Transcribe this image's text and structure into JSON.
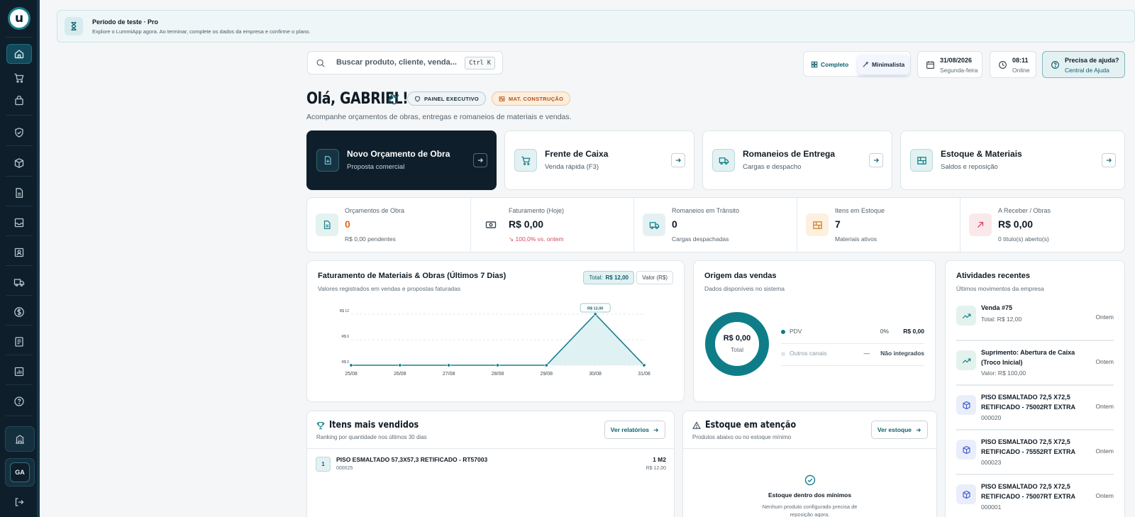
{
  "colors": {
    "primary": "#0e5f6e",
    "accent": "#17808d",
    "dark": "#0e1f2b",
    "warning": "#e06a1b",
    "danger": "#d94b5a"
  },
  "sidebar": {
    "logo": "u",
    "items": [
      {
        "icon": "home-icon",
        "active": true
      },
      {
        "icon": "cart-icon"
      },
      {
        "icon": "bag-icon"
      },
      {
        "icon": "shield-icon"
      },
      {
        "icon": "box-icon"
      },
      {
        "icon": "document-icon"
      },
      {
        "icon": "inbox-icon"
      },
      {
        "icon": "contacts-icon"
      },
      {
        "icon": "truck-icon"
      },
      {
        "icon": "dollar-icon"
      },
      {
        "icon": "receipt-icon"
      },
      {
        "icon": "chart-icon"
      },
      {
        "icon": "help-icon"
      }
    ],
    "company_icon": "building-icon",
    "avatar_initials": "GA",
    "logout_icon": "logout-icon"
  },
  "trial": {
    "title": "Período de teste · Pro",
    "text": "Explore o LummiApp agora. Ao terminar, complete os dados da empresa e confirme o plano."
  },
  "search": {
    "placeholder": "Buscar produto, cliente, venda...",
    "shortcut": "Ctrl K"
  },
  "view_mode": {
    "full": "Completo",
    "minimal": "Minimalista"
  },
  "date": {
    "value": "31/08/2026",
    "weekday": "Segunda-feira"
  },
  "clock": {
    "time": "08:11",
    "status": "Online"
  },
  "help": {
    "title": "Precisa de ajuda?",
    "subtitle": "Central de Ajuda"
  },
  "greeting": {
    "title": "Olá, GABRIEL!",
    "tag_exec": "PAINEL EXECUTIVO",
    "tag_mat": "MAT. CONSTRUÇÃO",
    "subtitle": "Acompanhe orçamentos de obras, entregas e romaneios de materiais e vendas."
  },
  "actions": [
    {
      "title": "Novo Orçamento de Obra",
      "subtitle": "Proposta comercial"
    },
    {
      "title": "Frente de Caixa",
      "subtitle": "Venda rápida (F3)"
    },
    {
      "title": "Romaneios de Entrega",
      "subtitle": "Cargas e despacho"
    },
    {
      "title": "Estoque & Materiais",
      "subtitle": "Saldos e reposição"
    }
  ],
  "kpis": [
    {
      "label": "Orçamentos de Obra",
      "value": "0",
      "sub": "R$ 0,00 pendentes"
    },
    {
      "label": "Faturamento (Hoje)",
      "value": "R$ 0,00",
      "sub": "↘ 100,0% vs. ontem"
    },
    {
      "label": "Romaneios em Trânsito",
      "value": "0",
      "sub": "Cargas despachadas"
    },
    {
      "label": "Itens em Estoque",
      "value": "7",
      "sub": "Materiais ativos"
    },
    {
      "label": "A Receber / Obras",
      "value": "R$ 0,00",
      "sub": "0 título(s) aberto(s)"
    }
  ],
  "revenue": {
    "title": "Faturamento de Materiais & Obras (Últimos 7 Dias)",
    "subtitle": "Valores registrados em vendas e propostas faturadas",
    "total_label": "Total:",
    "total_value": "R$ 12,00",
    "value_toggle": "Valor (R$)"
  },
  "chart_data": {
    "type": "area",
    "x": [
      "25/08",
      "26/08",
      "27/08",
      "28/08",
      "29/08",
      "30/08",
      "31/08"
    ],
    "series": [
      {
        "values": [
          0,
          0,
          0,
          0,
          0,
          12,
          0
        ]
      }
    ],
    "y_ticks": [
      "R$ 12",
      "R$ 6",
      "R$ 0"
    ],
    "ylim": [
      0,
      12
    ],
    "peak_label": "R$ 12,00",
    "grid": true
  },
  "origin": {
    "title": "Origem das vendas",
    "subtitle": "Dados disponíveis no sistema",
    "center_value": "R$ 0,00",
    "center_label": "Total",
    "rows": [
      {
        "name": "PDV",
        "pct": "0%",
        "amount": "R$ 0,00"
      },
      {
        "name": "Outros canais",
        "pct": "—",
        "amount": "Não integrados"
      }
    ]
  },
  "activities": {
    "title": "Atividades recentes",
    "subtitle": "Últimos movimentos da empresa",
    "items": [
      {
        "icon": "trend-up-icon",
        "title": "Venda #75",
        "sub": "Total: R$ 12,00",
        "when": "Ontem"
      },
      {
        "icon": "trend-up-icon",
        "title": "Suprimento: Abertura de Caixa (Troco Inicial)",
        "sub": "Valor: R$ 100,00",
        "when": "Ontem"
      },
      {
        "icon": "package-icon",
        "title": "PISO ESMALTADO 72,5 X72,5 RETIFICADO - 75002RT EXTRA",
        "sub": "000020",
        "when": "Ontem"
      },
      {
        "icon": "package-icon",
        "title": "PISO ESMALTADO 72,5 X72,5 RETIFICADO - 75552RT EXTRA",
        "sub": "000023",
        "when": "Ontem"
      },
      {
        "icon": "package-icon",
        "title": "PISO ESMALTADO 72,5 X72,5 RETIFICADO - 75007RT EXTRA",
        "sub": "000001",
        "when": "Ontem"
      }
    ]
  },
  "top_items": {
    "title": "Itens mais vendidos",
    "subtitle": "Ranking por quantidade nos últimos 30 dias",
    "button": "Ver relatórios",
    "rows": [
      {
        "rank": "1",
        "name": "PISO ESMALTADO 57,3X57,3 RETIFICADO - RT57003",
        "code": "000025",
        "qty": "1 M2",
        "amount": "R$ 12,00"
      }
    ]
  },
  "stock": {
    "title": "Estoque em atenção",
    "subtitle": "Produtos abaixo ou no estoque mínimo",
    "button": "Ver estoque",
    "ok_title": "Estoque dentro dos mínimos",
    "ok_text_1": "Nenhum produto configurado precisa de",
    "ok_text_2": "reposição agora."
  }
}
